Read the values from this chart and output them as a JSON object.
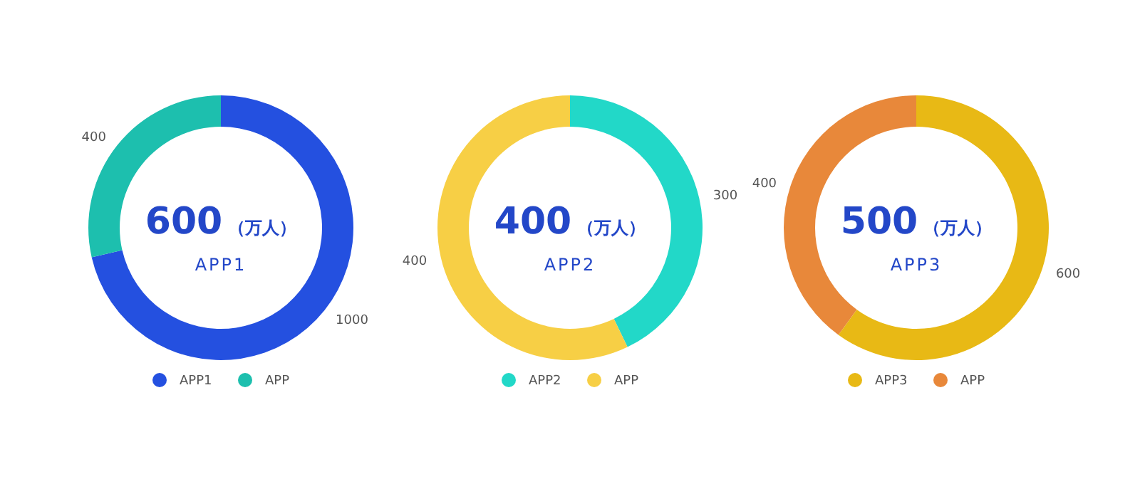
{
  "chart_data": [
    {
      "type": "donut",
      "title": "APP1",
      "annotations": [
        "600",
        "（万人）"
      ],
      "categories": [
        "APP1",
        "APP"
      ],
      "values": [
        1000,
        400
      ],
      "colors": [
        "#2450e0",
        "#1dbfae"
      ],
      "data_labels": true,
      "legend": "bottom"
    },
    {
      "type": "donut",
      "title": "APP2",
      "annotations": [
        "400",
        "（万人）"
      ],
      "categories": [
        "APP2",
        "APP"
      ],
      "values": [
        300,
        400
      ],
      "colors": [
        "#22d8c8",
        "#f7cf45"
      ],
      "data_labels": true,
      "legend": "bottom"
    },
    {
      "type": "donut",
      "title": "APP3",
      "annotations": [
        "500",
        "（万人）"
      ],
      "categories": [
        "APP3",
        "APP"
      ],
      "values": [
        600,
        400
      ],
      "colors": [
        "#e8b915",
        "#e8883a"
      ],
      "data_labels": true,
      "legend": "bottom"
    }
  ]
}
